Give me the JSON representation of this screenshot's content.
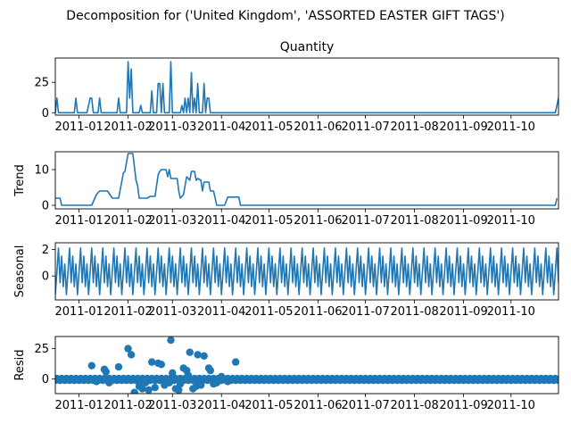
{
  "figure": {
    "suptitle": "Decomposition for ('United Kingdom', 'ASSORTED EASTER GIFT TAGS')",
    "x_tick_labels": [
      "2011-01",
      "2011-02",
      "2011-03",
      "2011-04",
      "2011-05",
      "2011-06",
      "2011-07",
      "2011-08",
      "2011-09",
      "2011-10"
    ],
    "series_color": "#1f77b4"
  },
  "chart_data": [
    {
      "id": "observed",
      "type": "line",
      "title": "Quantity",
      "ylabel": "",
      "ylim": [
        -2,
        45
      ],
      "yticks": [
        0,
        25
      ],
      "x_start": "2010-12-17",
      "x_end": "2011-10-31",
      "points": [
        [
          "2010-12-17",
          0
        ],
        [
          "2010-12-18",
          12
        ],
        [
          "2010-12-19",
          0
        ],
        [
          "2010-12-29",
          0
        ],
        [
          "2010-12-30",
          12
        ],
        [
          "2010-12-31",
          0
        ],
        [
          "2011-01-06",
          0
        ],
        [
          "2011-01-08",
          12
        ],
        [
          "2011-01-09",
          12
        ],
        [
          "2011-01-10",
          0
        ],
        [
          "2011-01-13",
          0
        ],
        [
          "2011-01-14",
          12
        ],
        [
          "2011-01-15",
          0
        ],
        [
          "2011-01-25",
          0
        ],
        [
          "2011-01-26",
          12
        ],
        [
          "2011-01-27",
          0
        ],
        [
          "2011-01-31",
          0
        ],
        [
          "2011-02-01",
          42
        ],
        [
          "2011-02-02",
          12
        ],
        [
          "2011-02-03",
          36
        ],
        [
          "2011-02-04",
          0
        ],
        [
          "2011-02-08",
          0
        ],
        [
          "2011-02-09",
          6
        ],
        [
          "2011-02-10",
          0
        ],
        [
          "2011-02-15",
          0
        ],
        [
          "2011-02-16",
          18
        ],
        [
          "2011-02-17",
          0
        ],
        [
          "2011-02-19",
          0
        ],
        [
          "2011-02-20",
          24
        ],
        [
          "2011-02-21",
          24
        ],
        [
          "2011-02-22",
          0
        ],
        [
          "2011-02-23",
          24
        ],
        [
          "2011-02-24",
          0
        ],
        [
          "2011-02-27",
          0
        ],
        [
          "2011-02-28",
          42
        ],
        [
          "2011-03-01",
          0
        ],
        [
          "2011-03-06",
          0
        ],
        [
          "2011-03-07",
          6
        ],
        [
          "2011-03-08",
          0
        ],
        [
          "2011-03-09",
          12
        ],
        [
          "2011-03-10",
          0
        ],
        [
          "2011-03-11",
          12
        ],
        [
          "2011-03-12",
          0
        ],
        [
          "2011-03-13",
          33
        ],
        [
          "2011-03-14",
          0
        ],
        [
          "2011-03-15",
          12
        ],
        [
          "2011-03-16",
          0
        ],
        [
          "2011-03-17",
          24
        ],
        [
          "2011-03-18",
          0
        ],
        [
          "2011-03-20",
          0
        ],
        [
          "2011-03-21",
          24
        ],
        [
          "2011-03-22",
          0
        ],
        [
          "2011-03-23",
          12
        ],
        [
          "2011-03-24",
          12
        ],
        [
          "2011-03-25",
          0
        ],
        [
          "2011-10-29",
          0
        ],
        [
          "2011-10-31",
          12
        ]
      ]
    },
    {
      "id": "trend",
      "type": "line",
      "title": "",
      "ylabel": "Trend",
      "ylim": [
        -1,
        15
      ],
      "yticks": [
        0,
        10
      ],
      "points": [
        [
          "2010-12-17",
          2
        ],
        [
          "2010-12-20",
          2
        ],
        [
          "2010-12-21",
          0
        ],
        [
          "2011-01-09",
          0
        ],
        [
          "2011-01-12",
          3
        ],
        [
          "2011-01-14",
          4
        ],
        [
          "2011-01-19",
          4
        ],
        [
          "2011-01-22",
          2
        ],
        [
          "2011-01-26",
          2
        ],
        [
          "2011-01-29",
          9
        ],
        [
          "2011-01-30",
          9.5
        ],
        [
          "2011-02-01",
          14.5
        ],
        [
          "2011-02-04",
          14.5
        ],
        [
          "2011-02-06",
          7
        ],
        [
          "2011-02-07",
          5.5
        ],
        [
          "2011-02-08",
          2
        ],
        [
          "2011-02-13",
          2
        ],
        [
          "2011-02-15",
          2.5
        ],
        [
          "2011-02-18",
          2.5
        ],
        [
          "2011-02-20",
          8.5
        ],
        [
          "2011-02-21",
          9.5
        ],
        [
          "2011-02-22",
          10
        ],
        [
          "2011-02-25",
          10
        ],
        [
          "2011-02-26",
          8
        ],
        [
          "2011-02-27",
          10
        ],
        [
          "2011-02-28",
          7.5
        ],
        [
          "2011-03-04",
          7.5
        ],
        [
          "2011-03-05",
          4
        ],
        [
          "2011-03-06",
          2
        ],
        [
          "2011-03-08",
          3
        ],
        [
          "2011-03-10",
          8
        ],
        [
          "2011-03-12",
          7
        ],
        [
          "2011-03-13",
          9.5
        ],
        [
          "2011-03-15",
          9.5
        ],
        [
          "2011-03-16",
          7
        ],
        [
          "2011-03-17",
          7.5
        ],
        [
          "2011-03-19",
          7
        ],
        [
          "2011-03-20",
          4
        ],
        [
          "2011-03-21",
          6.5
        ],
        [
          "2011-03-22",
          6.5
        ],
        [
          "2011-03-24",
          6.5
        ],
        [
          "2011-03-25",
          4
        ],
        [
          "2011-03-27",
          4
        ],
        [
          "2011-03-29",
          0
        ],
        [
          "2011-04-03",
          0
        ],
        [
          "2011-04-05",
          2.3
        ],
        [
          "2011-04-12",
          2.3
        ],
        [
          "2011-04-13",
          0
        ],
        [
          "2011-10-29",
          0
        ],
        [
          "2011-10-30",
          2
        ]
      ]
    },
    {
      "id": "seasonal",
      "type": "line",
      "title": "",
      "ylabel": "Seasonal",
      "ylim": [
        -1.8,
        2.5
      ],
      "yticks": [
        0,
        2
      ],
      "period_days": 7,
      "weekly_pattern": [
        -1.4,
        0.3,
        2.1,
        -0.5,
        1.5,
        -0.8,
        0.9
      ]
    },
    {
      "id": "resid",
      "type": "scatter",
      "title": "",
      "ylabel": "Resid",
      "ylim": [
        -12,
        35
      ],
      "yticks": [
        0,
        25
      ],
      "baseline": 0,
      "points": [
        [
          "2011-01-26",
          10
        ],
        [
          "2011-01-17",
          8
        ],
        [
          "2011-01-18",
          6
        ],
        [
          "2011-01-09",
          11
        ],
        [
          "2011-02-01",
          25
        ],
        [
          "2011-02-03",
          20
        ],
        [
          "2011-02-05",
          -11
        ],
        [
          "2011-02-12",
          -3
        ],
        [
          "2011-02-16",
          14
        ],
        [
          "2011-02-20",
          13
        ],
        [
          "2011-02-22",
          12
        ],
        [
          "2011-02-24",
          -5
        ],
        [
          "2011-02-27",
          -3
        ],
        [
          "2011-02-28",
          32
        ],
        [
          "2011-03-01",
          5
        ],
        [
          "2011-03-03",
          -8
        ],
        [
          "2011-03-06",
          -4
        ],
        [
          "2011-03-08",
          9
        ],
        [
          "2011-03-10",
          7
        ],
        [
          "2011-03-11",
          3
        ],
        [
          "2011-03-12",
          22
        ],
        [
          "2011-03-14",
          -8
        ],
        [
          "2011-03-17",
          20
        ],
        [
          "2011-03-21",
          19
        ],
        [
          "2011-03-24",
          9
        ],
        [
          "2011-03-25",
          7
        ],
        [
          "2011-03-27",
          -4
        ],
        [
          "2011-04-01",
          2
        ],
        [
          "2011-04-05",
          -2
        ],
        [
          "2011-04-10",
          14
        ],
        [
          "2011-02-08",
          -6
        ],
        [
          "2011-02-10",
          -8
        ],
        [
          "2011-02-14",
          -9
        ],
        [
          "2011-02-18",
          -7
        ],
        [
          "2011-03-05",
          -9
        ],
        [
          "2011-03-16",
          -6
        ],
        [
          "2011-03-19",
          -5
        ],
        [
          "2011-03-29",
          -3
        ],
        [
          "2011-01-20",
          -3
        ],
        [
          "2011-01-12",
          -2
        ]
      ]
    }
  ]
}
